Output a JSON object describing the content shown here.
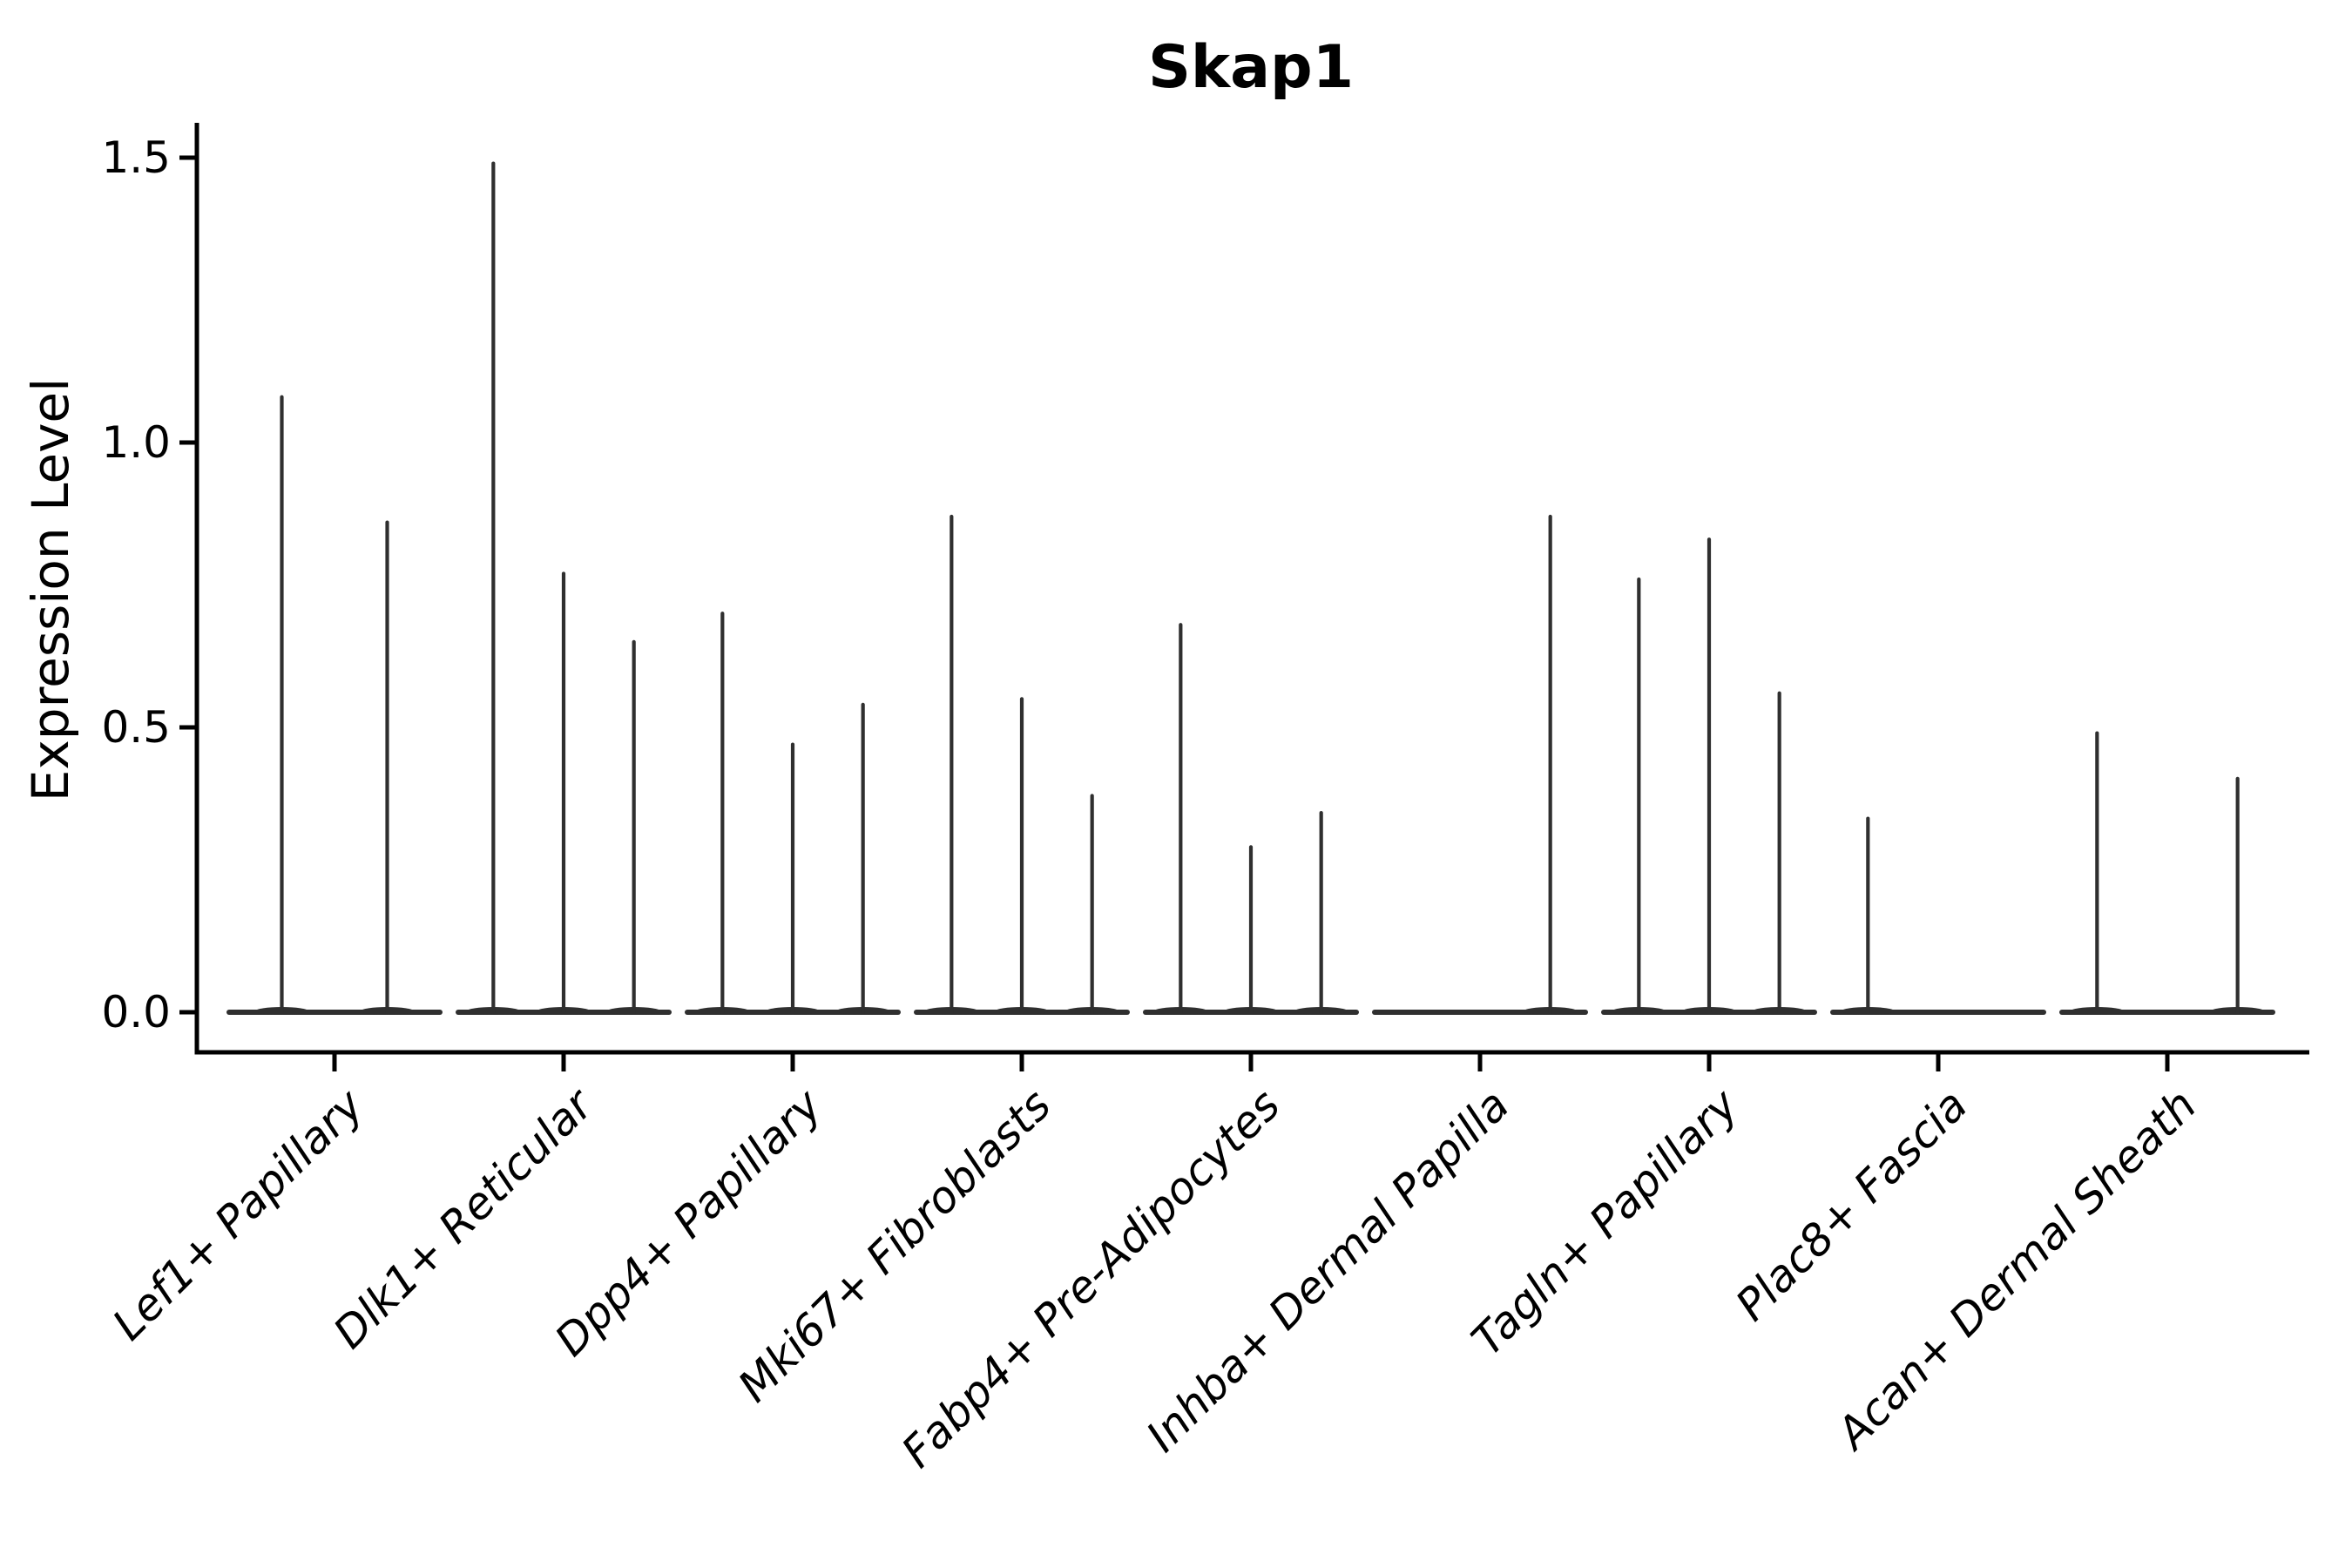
{
  "title": "Skap1",
  "y_axis": {
    "label": "Expression Level",
    "tick_labels": [
      "0.0",
      "0.5",
      "1.0",
      "1.5"
    ],
    "tick_values": [
      0.0,
      0.5,
      1.0,
      1.5
    ]
  },
  "x_axis": {
    "categories": [
      "Lef1+ Papillary",
      "Dlk1+ Reticular",
      "Dpp4+ Papillary",
      "Mki67+ Fibroblasts",
      "Fabp4+ Pre-Adipocytes",
      "Inhba+ Dermal Papilla",
      "Tagln+ Papillary",
      "Plac8+ Fascia",
      "Acan+ Dermal Sheath"
    ]
  },
  "colors": {
    "violin_stroke": "#2f2f2f",
    "axis": "#000000",
    "background": "#ffffff"
  },
  "chart_data": {
    "type": "violin",
    "title": "Skap1",
    "ylabel": "Expression Level",
    "xlabel": "",
    "ylim": [
      -0.07,
      1.56
    ],
    "yticks": [
      0.0,
      0.5,
      1.0,
      1.5
    ],
    "ytick_labels": [
      "0.0",
      "0.5",
      "1.0",
      "1.5"
    ],
    "grid": false,
    "legend": "none",
    "note": "Needle-thin violins: bulk of density is a flat base at 0; each listed value is the max-expression spike height of one violin. 0 means flat baseline only (no expressing cells).",
    "categories": [
      "Lef1+ Papillary",
      "Dlk1+ Reticular",
      "Dpp4+ Papillary",
      "Mki67+ Fibroblasts",
      "Fabp4+ Pre-Adipocytes",
      "Inhba+ Dermal Papilla",
      "Tagln+ Papillary",
      "Plac8+ Fascia",
      "Acan+ Dermal Sheath"
    ],
    "groups": [
      {
        "category": "Lef1+ Papillary",
        "violins": [
          1.08,
          0.86
        ]
      },
      {
        "category": "Dlk1+ Reticular",
        "violins": [
          1.49,
          0.77,
          0.65
        ]
      },
      {
        "category": "Dpp4+ Papillary",
        "violins": [
          0.7,
          0.47,
          0.54
        ]
      },
      {
        "category": "Mki67+ Fibroblasts",
        "violins": [
          0.87,
          0.55,
          0.38
        ]
      },
      {
        "category": "Fabp4+ Pre-Adipocytes",
        "violins": [
          0.68,
          0.29,
          0.35
        ]
      },
      {
        "category": "Inhba+ Dermal Papilla",
        "violins": [
          0.0,
          0.0,
          0.87
        ]
      },
      {
        "category": "Tagln+ Papillary",
        "violins": [
          0.76,
          0.83,
          0.56
        ]
      },
      {
        "category": "Plac8+ Fascia",
        "violins": [
          0.34,
          0.0,
          0.0
        ]
      },
      {
        "category": "Acan+ Dermal Sheath",
        "violins": [
          0.49,
          0.0,
          0.41
        ]
      }
    ]
  }
}
